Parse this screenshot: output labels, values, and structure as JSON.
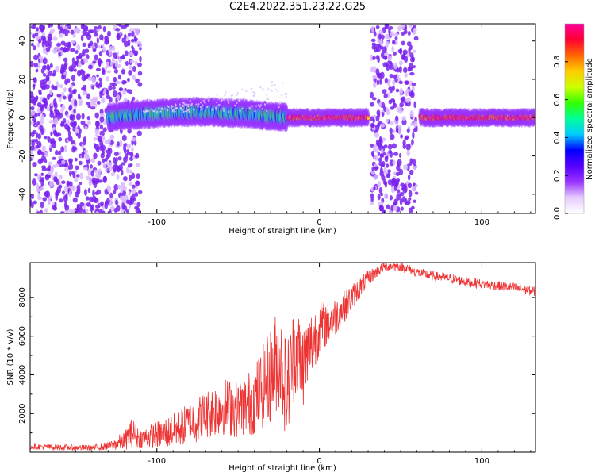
{
  "page_title": "C2E4.2022.351.23.22.G25",
  "chart_data": [
    {
      "type": "heatmap",
      "title": "C2E4.2022.351.23.22.G25",
      "xlabel": "Height of straight line (km)",
      "ylabel": "Frequency (Hz)",
      "xlim": [
        -178,
        133
      ],
      "ylim": [
        -50,
        49
      ],
      "x_ticks": [
        -100,
        0,
        100
      ],
      "y_ticks": [
        -40,
        -20,
        0,
        20,
        40
      ],
      "colorbar": {
        "label": "Normalized spectral amplitude",
        "range": [
          0.0,
          1.0
        ],
        "ticks": [
          0.0,
          0.2,
          0.4,
          0.6,
          0.8
        ],
        "colormap": [
          "#ffffff",
          "#e6ccff",
          "#9933ff",
          "#5500ff",
          "#0000ff",
          "#00ccff",
          "#00ff99",
          "#33ff00",
          "#ccff00",
          "#ffcc00",
          "#ff6600",
          "#ff0033",
          "#ff0099"
        ]
      },
      "regions": [
        {
          "name": "noise",
          "x_range": [
            -178,
            -110
          ],
          "freq_range": [
            -50,
            49
          ],
          "amplitude": 0.15
        },
        {
          "name": "noise",
          "x_range": [
            32,
            60
          ],
          "freq_range": [
            -50,
            49
          ],
          "amplitude": 0.15
        },
        {
          "name": "signal",
          "x_range": [
            -130,
            -20
          ],
          "freq_center": [
            0,
            5
          ],
          "amplitude": 0.45
        },
        {
          "name": "signal",
          "x_range": [
            -20,
            30
          ],
          "freq_center": [
            0,
            0
          ],
          "amplitude": 0.9
        },
        {
          "name": "signal",
          "x_range": [
            62,
            133
          ],
          "freq_center": [
            0,
            0
          ],
          "amplitude": 0.9
        }
      ]
    },
    {
      "type": "line",
      "xlabel": "Height of straight line (km)",
      "ylabel": "SNR (10 * v/v)",
      "xlim": [
        -178,
        133
      ],
      "ylim": [
        0,
        9800
      ],
      "x_ticks": [
        -100,
        0,
        100
      ],
      "y_ticks": [
        2000,
        4000,
        6000,
        8000
      ],
      "color": "#ee3333",
      "x": [
        -178,
        -160,
        -140,
        -130,
        -120,
        -115,
        -110,
        -100,
        -90,
        -80,
        -70,
        -60,
        -50,
        -40,
        -30,
        -25,
        -20,
        -15,
        -10,
        -5,
        0,
        10,
        20,
        30,
        40,
        50,
        60,
        70,
        80,
        90,
        100,
        110,
        120,
        133
      ],
      "values": [
        300,
        250,
        230,
        300,
        600,
        1000,
        700,
        900,
        1100,
        1500,
        1900,
        2400,
        2200,
        2700,
        4000,
        5000,
        3200,
        5400,
        4500,
        5600,
        6400,
        7000,
        8000,
        9000,
        9600,
        9600,
        9300,
        9100,
        9000,
        8800,
        8700,
        8600,
        8500,
        8300
      ],
      "noise_amplitude": [
        150,
        150,
        150,
        200,
        500,
        800,
        500,
        700,
        900,
        1100,
        1300,
        1500,
        1500,
        1800,
        2500,
        2800,
        2600,
        2500,
        2200,
        1800,
        1400,
        1000,
        700,
        400,
        250,
        250,
        250,
        250,
        250,
        250,
        250,
        250,
        250,
        250
      ]
    }
  ]
}
